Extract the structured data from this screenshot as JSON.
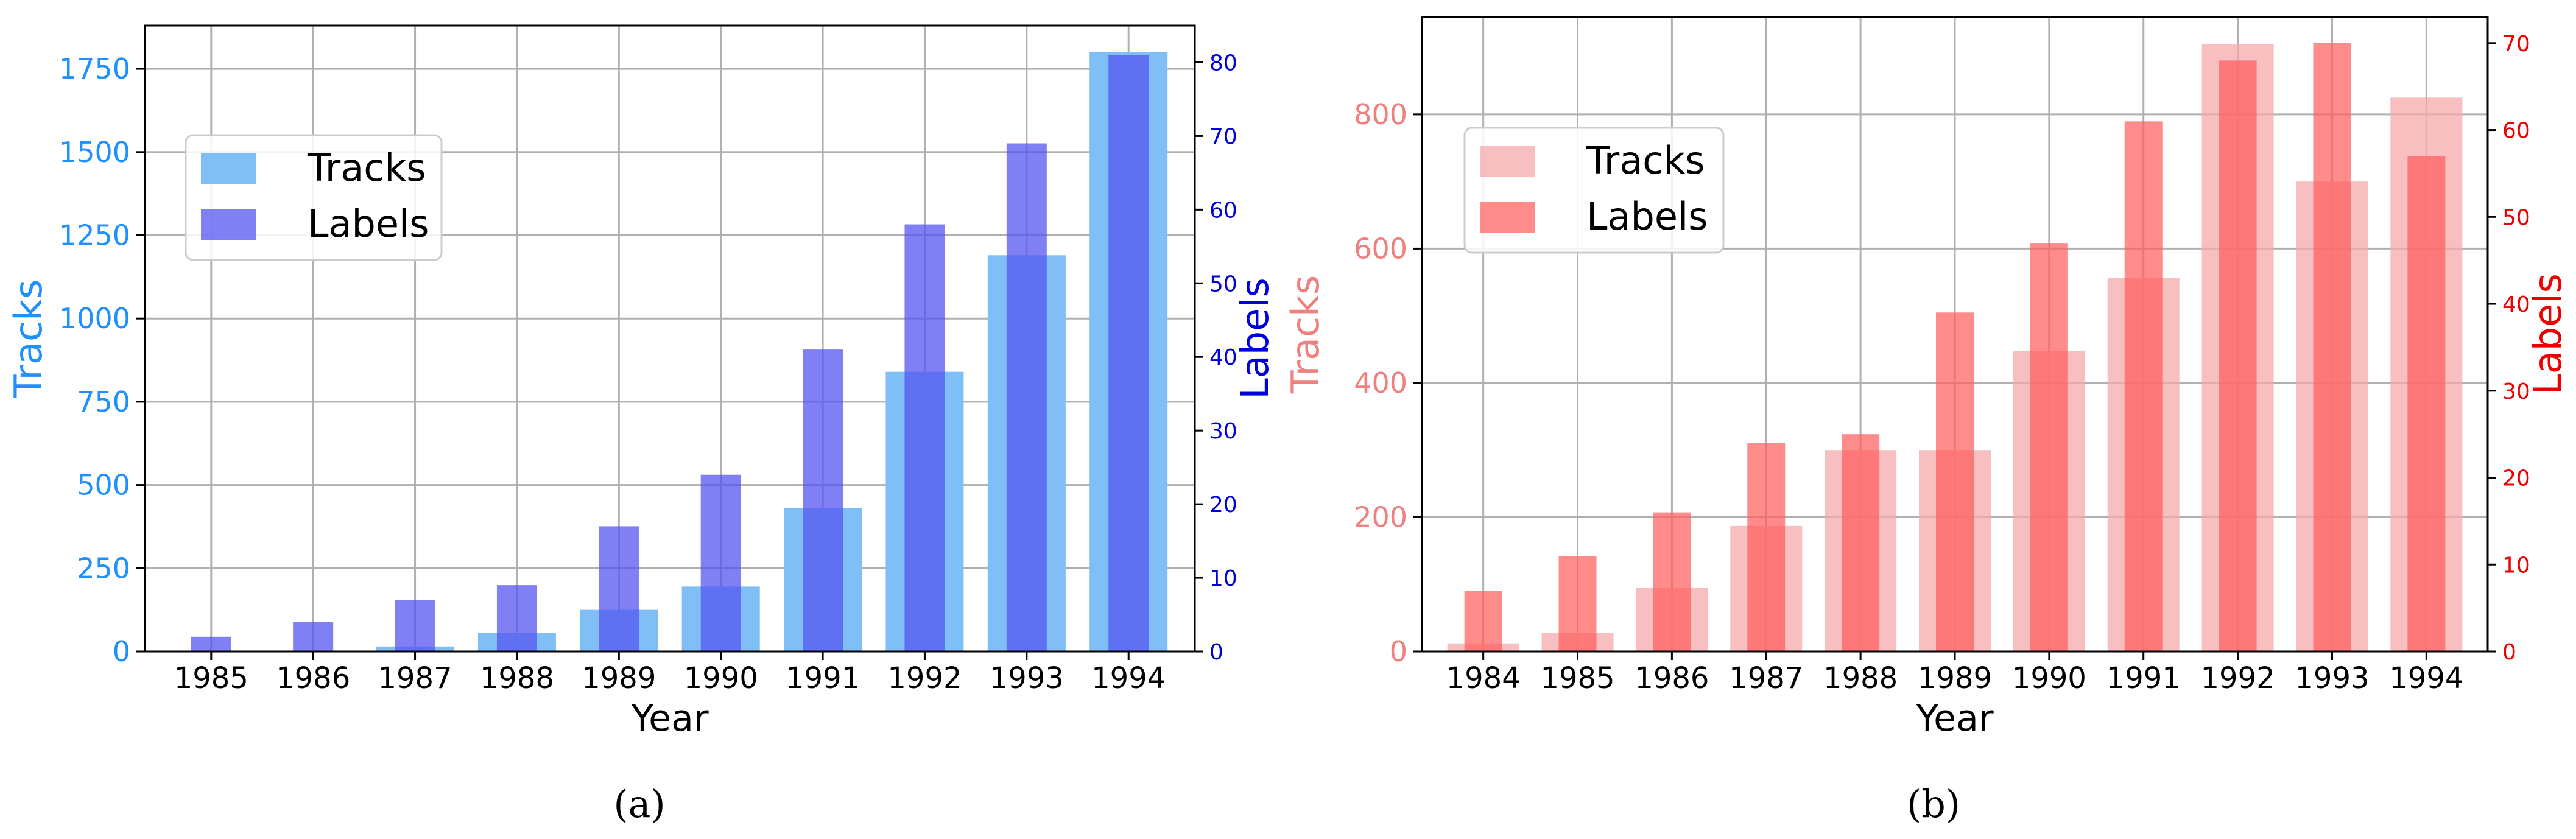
{
  "figure": {
    "captions": [
      "(a)",
      "(b)"
    ]
  },
  "chart_data": [
    {
      "type": "bar",
      "panel": "a",
      "categories": [
        "1985",
        "1986",
        "1987",
        "1988",
        "1989",
        "1990",
        "1991",
        "1992",
        "1993",
        "1994"
      ],
      "xlabel": "Year",
      "ylabel": "Tracks",
      "y2label": "Labels",
      "ylim": [
        0,
        1880
      ],
      "y2lim": [
        0,
        85
      ],
      "yticks": [
        0,
        250,
        500,
        750,
        1000,
        1250,
        1500,
        1750
      ],
      "y2ticks": [
        0,
        10,
        20,
        30,
        40,
        50,
        60,
        70,
        80
      ],
      "grid": true,
      "legend_position": "upper-left",
      "series": [
        {
          "name": "Tracks",
          "axis": "left",
          "color": "#7fbff5",
          "values": [
            0,
            0,
            15,
            55,
            125,
            195,
            430,
            840,
            1190,
            1800
          ]
        },
        {
          "name": "Labels",
          "axis": "right",
          "color": "#5555f0",
          "values": [
            2,
            4,
            7,
            9,
            17,
            24,
            41,
            58,
            69,
            81
          ]
        }
      ],
      "colors": {
        "left_axis": "#1e90ff",
        "right_axis": "#0000dd"
      }
    },
    {
      "type": "bar",
      "panel": "b",
      "categories": [
        "1984",
        "1985",
        "1986",
        "1987",
        "1988",
        "1989",
        "1990",
        "1991",
        "1992",
        "1993",
        "1994"
      ],
      "xlabel": "Year",
      "ylabel": "Tracks",
      "y2label": "Labels",
      "ylim": [
        0,
        945
      ],
      "y2lim": [
        0,
        73
      ],
      "yticks": [
        0,
        200,
        400,
        600,
        800
      ],
      "y2ticks": [
        0,
        10,
        20,
        30,
        40,
        50,
        60,
        70
      ],
      "grid": true,
      "legend_position": "upper-left",
      "series": [
        {
          "name": "Tracks",
          "axis": "left",
          "color": "#f4aaaa",
          "values": [
            12,
            28,
            95,
            187,
            300,
            300,
            448,
            556,
            905,
            700,
            825
          ]
        },
        {
          "name": "Labels",
          "axis": "right",
          "color": "#ff5e5e",
          "values": [
            7,
            11,
            16,
            24,
            25,
            39,
            47,
            61,
            68,
            70,
            57
          ]
        }
      ],
      "colors": {
        "left_axis": "#f08080",
        "right_axis": "#ee0000"
      }
    }
  ]
}
